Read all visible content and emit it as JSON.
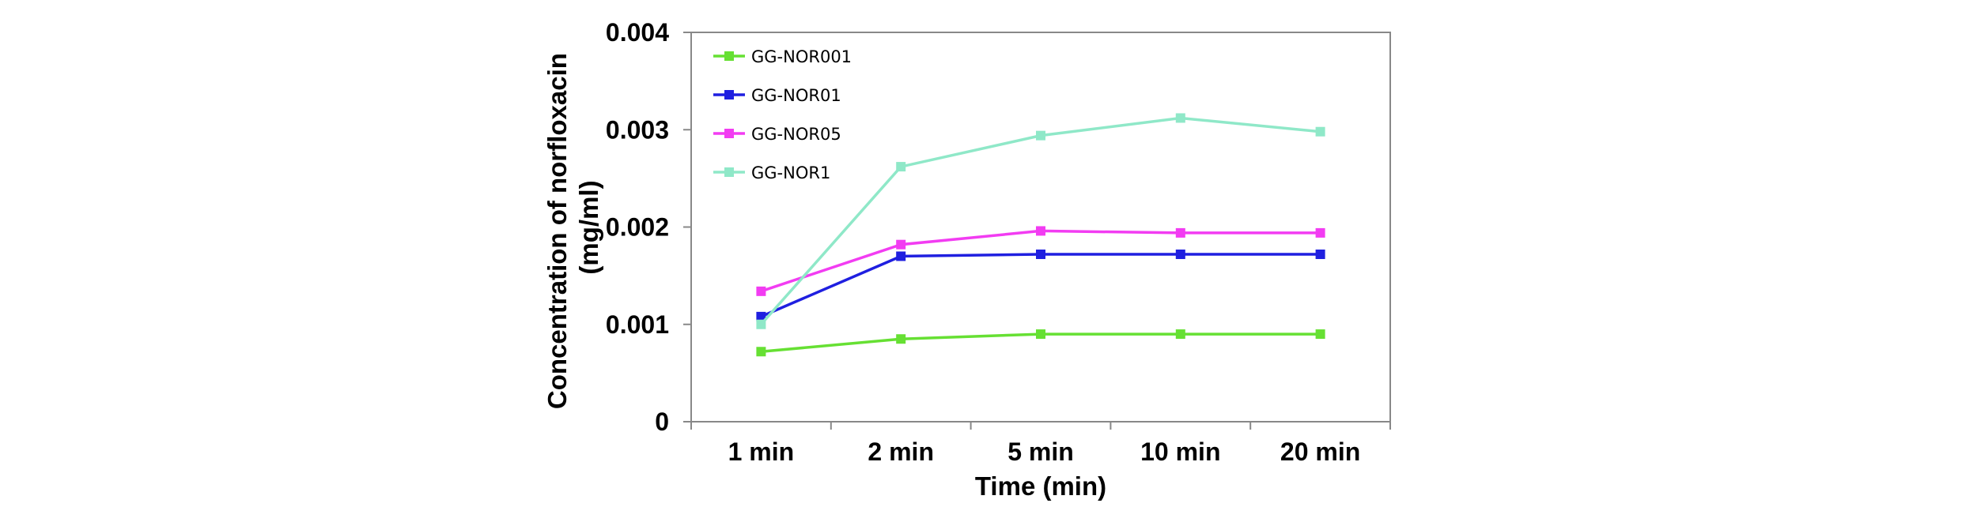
{
  "chart_data": {
    "type": "line",
    "categories": [
      "1 min",
      "2 min",
      "5 min",
      "10 min",
      "20 min"
    ],
    "series": [
      {
        "name": "GG-NOR001",
        "color": "#66E033",
        "values": [
          0.00072,
          0.00085,
          0.0009,
          0.0009,
          0.0009
        ]
      },
      {
        "name": "GG-NOR01",
        "color": "#1F1FE0",
        "values": [
          0.00108,
          0.0017,
          0.00172,
          0.00172,
          0.00172
        ]
      },
      {
        "name": "GG-NOR05",
        "color": "#F23CF2",
        "values": [
          0.00134,
          0.00182,
          0.00196,
          0.00194,
          0.00194
        ]
      },
      {
        "name": "GG-NOR1",
        "color": "#8FE8C8",
        "values": [
          0.001,
          0.00262,
          0.00294,
          0.00312,
          0.00298
        ]
      }
    ],
    "xlabel": "Time (min)",
    "ylabel": [
      "Concentration of norfloxacin",
      "(mg/ml)"
    ],
    "ylim": [
      0,
      0.004
    ],
    "yticks": [
      0,
      0.001,
      0.002,
      0.003,
      0.004
    ],
    "ytick_labels": [
      "0",
      "0.001",
      "0.002",
      "0.003",
      "0.004"
    ],
    "grid": false,
    "legend": "top-left"
  }
}
